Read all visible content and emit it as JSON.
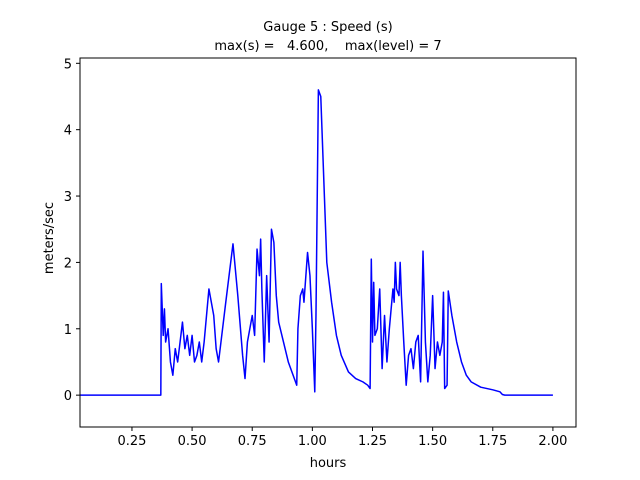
{
  "chart_data": {
    "type": "line",
    "title": "Gauge 5 : Speed (s)",
    "subtitle": "max(s) =   4.600,    max(level) = 7",
    "xlabel": "hours",
    "ylabel": "meters/sec",
    "xlim": [
      0.034,
      2.096
    ],
    "ylim": [
      -0.48,
      5.08
    ],
    "xticks": [
      0.25,
      {
        "value": 0.5,
        "label": "0.50"
      },
      0.75,
      {
        "value": 1.0,
        "label": "1.00"
      },
      1.25,
      {
        "value": 1.5,
        "label": "1.50"
      },
      1.75,
      {
        "value": 2.0,
        "label": "2.00"
      }
    ],
    "yticks": [
      0,
      1,
      2,
      3,
      4,
      5
    ],
    "series": [
      {
        "name": "s",
        "color": "#0000ff",
        "x": [
          0.034,
          0.37,
          0.372,
          0.38,
          0.385,
          0.39,
          0.4,
          0.41,
          0.42,
          0.43,
          0.44,
          0.45,
          0.46,
          0.47,
          0.48,
          0.49,
          0.5,
          0.51,
          0.52,
          0.53,
          0.54,
          0.55,
          0.57,
          0.59,
          0.6,
          0.61,
          0.62,
          0.64,
          0.67,
          0.69,
          0.71,
          0.72,
          0.73,
          0.75,
          0.76,
          0.77,
          0.78,
          0.785,
          0.79,
          0.8,
          0.81,
          0.82,
          0.83,
          0.84,
          0.85,
          0.86,
          0.88,
          0.9,
          0.92,
          0.935,
          0.94,
          0.95,
          0.96,
          0.965,
          0.98,
          0.99,
          1.0,
          1.01,
          1.015,
          1.025,
          1.035,
          1.05,
          1.06,
          1.08,
          1.1,
          1.12,
          1.15,
          1.18,
          1.21,
          1.23,
          1.24,
          1.245,
          1.25,
          1.255,
          1.26,
          1.27,
          1.28,
          1.29,
          1.3,
          1.31,
          1.32,
          1.335,
          1.34,
          1.345,
          1.35,
          1.36,
          1.365,
          1.37,
          1.38,
          1.39,
          1.4,
          1.41,
          1.42,
          1.43,
          1.44,
          1.45,
          1.46,
          1.47,
          1.48,
          1.49,
          1.5,
          1.51,
          1.52,
          1.53,
          1.54,
          1.545,
          1.55,
          1.56,
          1.565,
          1.58,
          1.6,
          1.62,
          1.64,
          1.66,
          1.7,
          1.75,
          1.78,
          1.79,
          1.8,
          2.0
        ],
        "values": [
          0,
          0,
          1.68,
          0.9,
          1.3,
          0.8,
          1.0,
          0.5,
          0.3,
          0.7,
          0.5,
          0.8,
          1.1,
          0.7,
          0.9,
          0.6,
          0.9,
          0.5,
          0.6,
          0.8,
          0.5,
          0.8,
          1.6,
          1.2,
          0.7,
          0.5,
          0.8,
          1.4,
          2.28,
          1.5,
          0.6,
          0.25,
          0.8,
          1.2,
          0.9,
          2.2,
          1.8,
          2.35,
          1.6,
          0.5,
          1.8,
          0.8,
          2.5,
          2.3,
          1.5,
          1.1,
          0.8,
          0.5,
          0.3,
          0.15,
          1.0,
          1.5,
          1.6,
          1.4,
          2.15,
          1.8,
          1.0,
          0.05,
          1.2,
          4.6,
          4.5,
          3.0,
          2.0,
          1.4,
          0.9,
          0.6,
          0.35,
          0.25,
          0.2,
          0.15,
          0.1,
          2.05,
          0.8,
          1.7,
          0.9,
          1.0,
          1.6,
          0.4,
          1.2,
          0.5,
          1.0,
          1.6,
          1.4,
          2.0,
          1.6,
          1.5,
          2.0,
          1.5,
          0.8,
          0.15,
          0.6,
          0.7,
          0.4,
          0.8,
          0.9,
          0.2,
          2.17,
          0.8,
          0.2,
          0.6,
          1.5,
          0.4,
          0.8,
          0.6,
          0.8,
          1.55,
          0.1,
          0.15,
          1.57,
          1.2,
          0.8,
          0.5,
          0.3,
          0.2,
          0.12,
          0.08,
          0.05,
          0.01,
          0,
          0
        ]
      }
    ]
  }
}
